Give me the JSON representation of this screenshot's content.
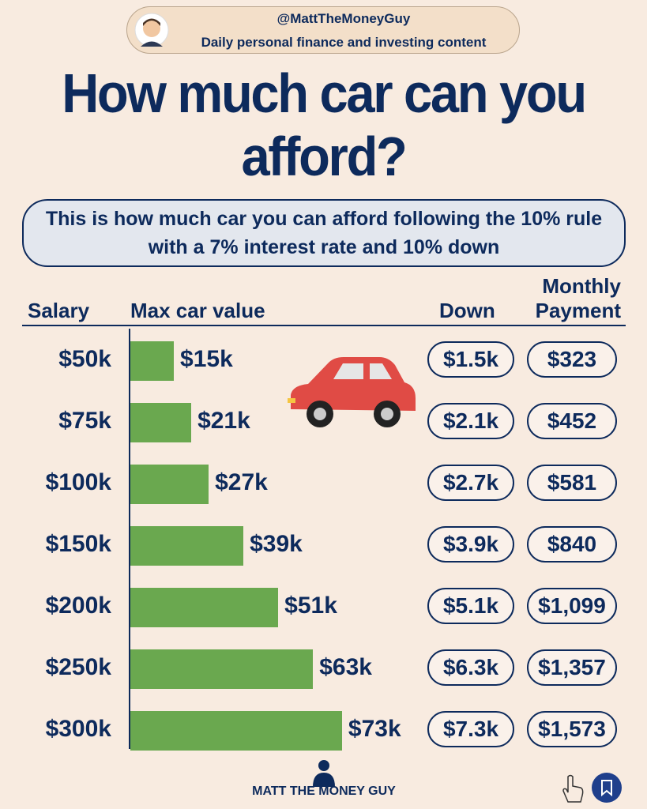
{
  "header": {
    "handle": "@MattTheMoneyGuy",
    "tagline": "Daily personal finance and investing content"
  },
  "title": "How much car can you afford?",
  "subtitle": "This is how much car you can afford following the 10% rule with a 7% interest rate and 10% down",
  "chart_data": {
    "type": "bar",
    "orientation": "horizontal",
    "columns": {
      "salary": "Salary",
      "car": "Max car value",
      "down": "Down",
      "payment": "Monthly Payment"
    },
    "categories": [
      "$50k",
      "$75k",
      "$100k",
      "$150k",
      "$200k",
      "$250k",
      "$300k"
    ],
    "values": [
      15000,
      21000,
      27000,
      39000,
      51000,
      63000,
      73000
    ],
    "value_labels": [
      "$15k",
      "$21k",
      "$27k",
      "$39k",
      "$51k",
      "$63k",
      "$73k"
    ],
    "color": "#6aa84f",
    "down": [
      "$1.5k",
      "$2.1k",
      "$2.7k",
      "$3.9k",
      "$5.1k",
      "$6.3k",
      "$7.3k"
    ],
    "monthly_payment": [
      "$323",
      "$452",
      "$581",
      "$840",
      "$1,099",
      "$1,357",
      "$1,573"
    ]
  },
  "footer": {
    "brand": "MATT THE MONEY GUY"
  }
}
